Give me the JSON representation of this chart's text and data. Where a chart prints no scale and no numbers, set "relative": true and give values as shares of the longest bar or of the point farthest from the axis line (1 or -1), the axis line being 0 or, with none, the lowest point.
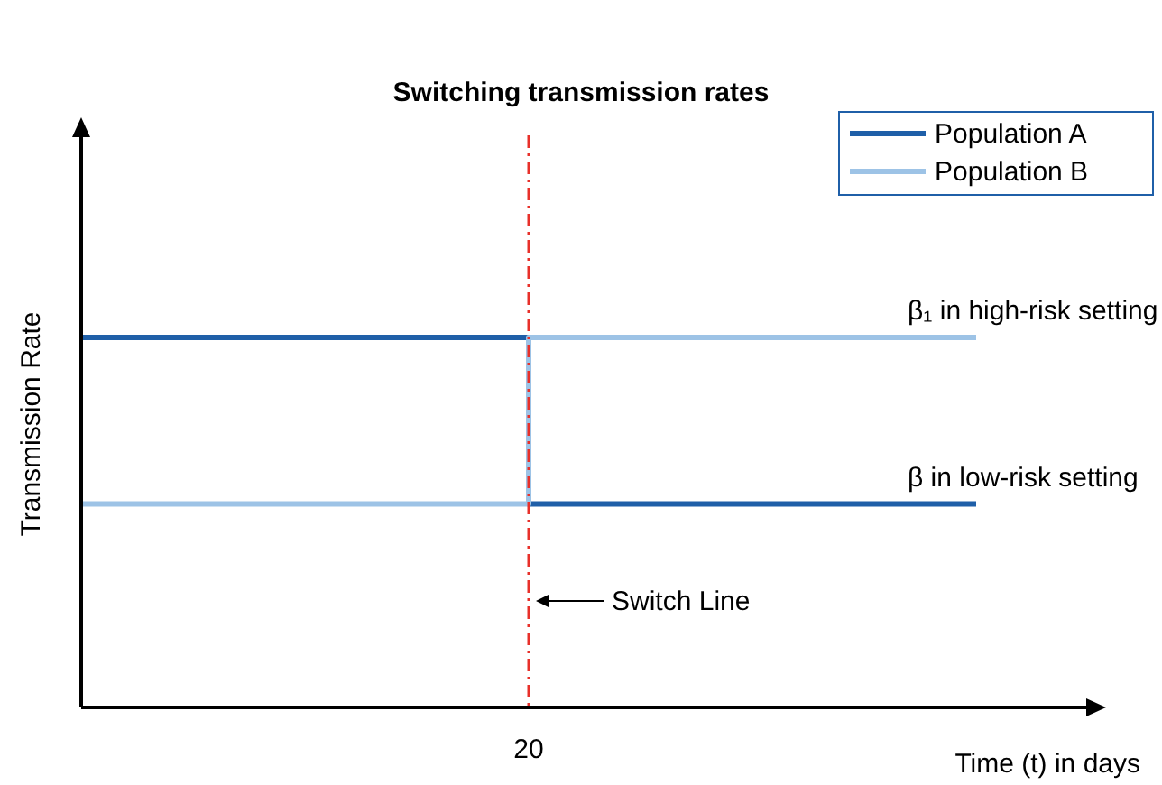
{
  "chart_data": {
    "type": "step",
    "title": "Switching transmission rates",
    "xlabel": "Time (t) in days",
    "ylabel": "Transmission Rate",
    "relative": true,
    "categories": [
      null,
      null,
      null
    ],
    "series": [
      {
        "name": "Population A",
        "color": "#1f5fa8",
        "values": [
          1,
          0.55,
          0.55
        ]
      },
      {
        "name": "Population B",
        "color": "#9dc3e6",
        "values": [
          0.55,
          1,
          1
        ]
      }
    ],
    "ref_lines": [
      {
        "axis": "x",
        "value": "20",
        "label": "Switch Line",
        "color": "#e8302a",
        "line_style": "dashdot"
      }
    ],
    "annotations": [
      "β₁ in high-risk setting",
      "β in low-risk setting"
    ],
    "legend": "top right",
    "grid": false
  }
}
